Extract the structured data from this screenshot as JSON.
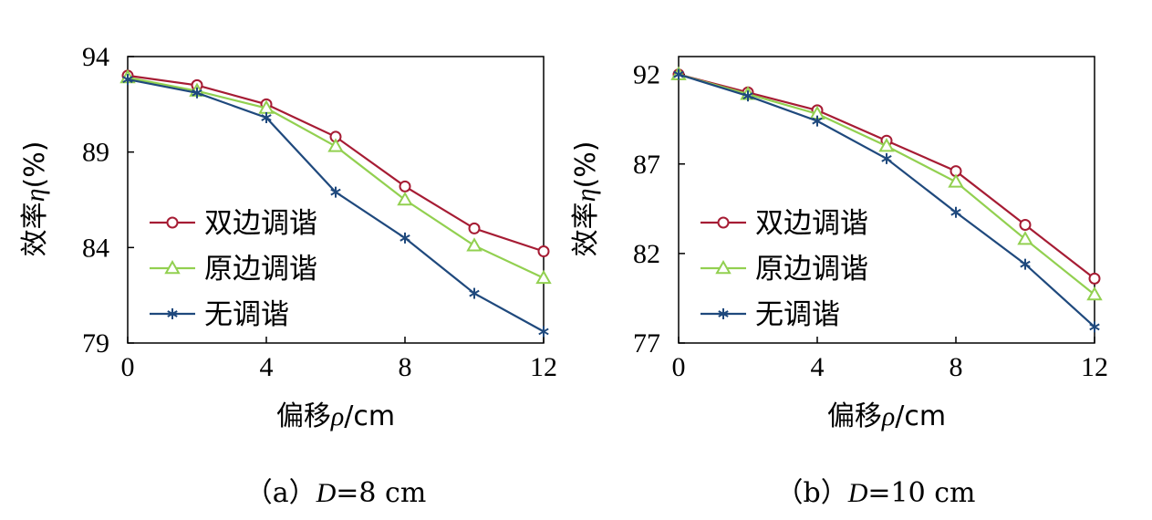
{
  "chart_data": [
    {
      "type": "line",
      "caption": {
        "prefix": "（a）",
        "var": "D",
        "rest": "=8 cm"
      },
      "xlabel": {
        "text": "偏移",
        "var": "ρ",
        "unit": "/cm"
      },
      "ylabel": {
        "text": "效率",
        "var": "η",
        "unit": "(%)"
      },
      "xlim": [
        0,
        12
      ],
      "ylim": [
        79,
        94
      ],
      "xticks": [
        0,
        4,
        8,
        12
      ],
      "yticks": [
        79,
        84,
        89,
        94
      ],
      "x": [
        0,
        2,
        4,
        6,
        8,
        10,
        12
      ],
      "series": [
        {
          "name": "双边调谐",
          "marker": "circle",
          "color": "#A61C34",
          "values": [
            93.0,
            92.5,
            91.5,
            89.8,
            87.2,
            85.0,
            83.8
          ]
        },
        {
          "name": "原边调谐",
          "marker": "triangle",
          "color": "#92D050",
          "values": [
            92.9,
            92.2,
            91.3,
            89.3,
            86.5,
            84.1,
            82.4
          ]
        },
        {
          "name": "无调谐",
          "marker": "star",
          "color": "#1F497D",
          "values": [
            92.8,
            92.1,
            90.8,
            86.9,
            84.5,
            81.6,
            79.6
          ]
        }
      ],
      "legend": "center-left",
      "grid": false
    },
    {
      "type": "line",
      "caption": {
        "prefix": "（b）",
        "var": "D",
        "rest": "=10 cm"
      },
      "xlabel": {
        "text": "偏移",
        "var": "ρ",
        "unit": "/cm"
      },
      "ylabel": {
        "text": "效率",
        "var": "η",
        "unit": "(%)"
      },
      "xlim": [
        0,
        12
      ],
      "ylim": [
        77,
        93
      ],
      "xticks": [
        0,
        4,
        8,
        12
      ],
      "yticks": [
        77,
        82,
        87,
        92
      ],
      "x": [
        0,
        2,
        4,
        6,
        8,
        10,
        12
      ],
      "series": [
        {
          "name": "双边调谐",
          "marker": "circle",
          "color": "#A61C34",
          "values": [
            92.0,
            91.0,
            90.0,
            88.3,
            86.6,
            83.6,
            80.6
          ]
        },
        {
          "name": "原边调谐",
          "marker": "triangle",
          "color": "#92D050",
          "values": [
            92.0,
            90.9,
            89.8,
            88.0,
            86.0,
            82.8,
            79.7
          ]
        },
        {
          "name": "无调谐",
          "marker": "star",
          "color": "#1F497D",
          "values": [
            92.0,
            90.8,
            89.4,
            87.3,
            84.3,
            81.4,
            77.9
          ]
        }
      ],
      "legend": "center-left",
      "grid": false
    }
  ]
}
